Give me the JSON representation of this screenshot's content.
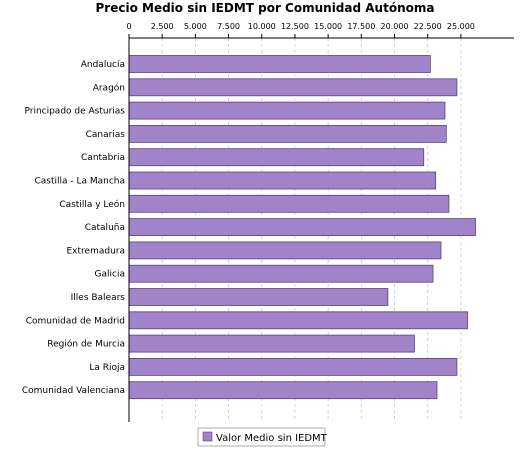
{
  "chart_data": {
    "type": "bar",
    "orientation": "horizontal",
    "title": "Precio Medio sin IEDMT por Comunidad Autónoma",
    "xlim": [
      0,
      29000
    ],
    "ticks": [
      0,
      2500,
      5000,
      7500,
      10000,
      12500,
      15000,
      17500,
      20000,
      22500,
      25000
    ],
    "tick_labels": [
      "0",
      "2.500",
      "5.000",
      "7.500",
      "10.000",
      "12.500",
      "15.000",
      "17.500",
      "20.000",
      "22.500",
      "25.000"
    ],
    "grid": true,
    "legend_position": "bottom",
    "bar_color": "#a183c9",
    "categories": [
      "Andalucía",
      "Aragón",
      "Principado de Asturias",
      "Canarias",
      "Cantabria",
      "Castilla - La Mancha",
      "Castilla y León",
      "Cataluña",
      "Extremadura",
      "Galicia",
      "Illes Balears",
      "Comunidad de Madrid",
      "Región de Murcia",
      "La Rioja",
      "Comunidad Valenciana"
    ],
    "series": [
      {
        "name": "Valor Medio sin IEDMT",
        "values": [
          22700,
          24700,
          23800,
          23900,
          22200,
          23100,
          24100,
          26100,
          23500,
          22900,
          19500,
          25500,
          21500,
          24700,
          23200
        ]
      }
    ]
  }
}
